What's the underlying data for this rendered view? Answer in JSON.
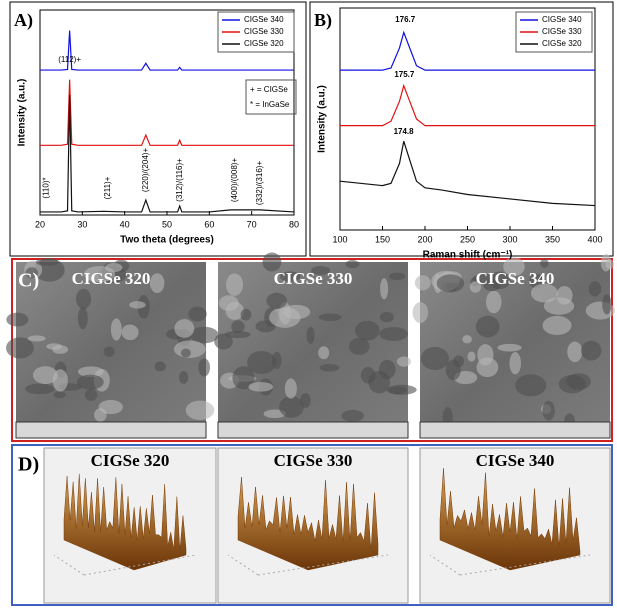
{
  "chart_data": [
    {
      "type": "line",
      "panel_label": "A)",
      "x_label": "Two theta (degrees)",
      "y_label": "Intensity (a.u.)",
      "x": [
        20,
        25,
        26.5,
        27,
        27.5,
        29,
        35,
        40,
        44,
        45,
        46,
        50,
        52.5,
        53,
        53.5,
        60,
        65,
        72,
        80
      ],
      "series": [
        {
          "name": "CIGSe 340",
          "color": "#1010e0",
          "values": [
            70.7,
            70.7,
            71,
            90,
            71,
            70.7,
            70.7,
            70.7,
            70.7,
            74,
            70.7,
            70.7,
            70.7,
            72,
            70.7,
            70.7,
            70.7,
            70.7,
            70.7
          ]
        },
        {
          "name": "CIGSe 330",
          "color": "#e01010",
          "values": [
            34,
            34,
            34.5,
            66,
            34.5,
            34,
            34,
            34,
            34,
            39,
            34,
            34,
            34,
            36.5,
            34,
            34,
            34,
            34,
            34
          ]
        },
        {
          "name": "CIGSe 320",
          "color": "#111111",
          "values": [
            1.5,
            1.5,
            2,
            58.5,
            2,
            1.5,
            1.8,
            1.5,
            1.5,
            7.3,
            1.5,
            1.5,
            1.5,
            4.4,
            1.5,
            1.5,
            2.5,
            2.5,
            1.5
          ]
        }
      ],
      "annotations": [
        "(112)+",
        "(110)*",
        "(211)+",
        "(220)/(204)+",
        "(312)/(116)+",
        "(400)/(008)+",
        "(332)/(316)+",
        "+ = CIGSe",
        "* = InGaSe"
      ],
      "xlim": [
        20,
        80
      ],
      "xticks": [
        20,
        30,
        40,
        50,
        60,
        70,
        80
      ],
      "ylim": [
        0,
        100
      ]
    },
    {
      "type": "line",
      "panel_label": "B)",
      "x_label": "Raman shift (cm⁻¹)",
      "y_label": "Intensity (a.u.)",
      "x": [
        100,
        150,
        160,
        170,
        175,
        180,
        190,
        200,
        220,
        250,
        300,
        350,
        400
      ],
      "series": [
        {
          "name": "CIGSe 340",
          "color": "#1010e0",
          "values": [
            72,
            72,
            73,
            82,
            89,
            84,
            74,
            72,
            72,
            72,
            72,
            72,
            72
          ]
        },
        {
          "name": "CIGSe 330",
          "color": "#e01010",
          "values": [
            47,
            47,
            49,
            58,
            65,
            60,
            50,
            47,
            47,
            47,
            47,
            47,
            47
          ]
        },
        {
          "name": "CIGSe 320",
          "color": "#111111",
          "values": [
            22,
            20,
            21,
            30,
            40,
            34,
            22,
            19,
            18,
            16,
            14,
            12,
            11
          ]
        }
      ],
      "annotations": [
        "176.7",
        "175.7",
        "174.8"
      ],
      "xlim": [
        100,
        400
      ],
      "xticks": [
        100,
        150,
        200,
        250,
        300,
        350,
        400
      ],
      "ylim": [
        0,
        100
      ]
    }
  ],
  "panels": {
    "sem": {
      "label": "C)",
      "titles": [
        "CIGSe 320",
        "CIGSe 330",
        "CIGSe 340"
      ]
    },
    "afm": {
      "label": "D)",
      "titles": [
        "CIGSe 320",
        "CIGSe 330",
        "CIGSe 340"
      ]
    }
  }
}
